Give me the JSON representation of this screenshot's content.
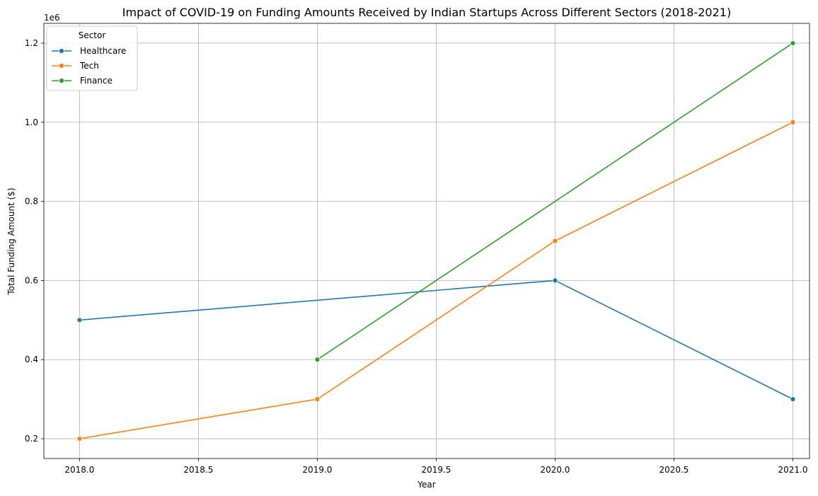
{
  "chart_data": {
    "type": "line",
    "title": "Impact of COVID-19 on Funding Amounts Received by Indian Startups Across Different Sectors (2018-2021)",
    "xlabel": "Year",
    "ylabel": "Total Funding Amount ($)",
    "y_offset_label": "1e6",
    "xlim": [
      2017.85,
      2021.07
    ],
    "ylim": [
      150000,
      1250000
    ],
    "x_ticks": [
      2018.0,
      2018.5,
      2019.0,
      2019.5,
      2020.0,
      2020.5,
      2021.0
    ],
    "x_tick_labels": [
      "2018.0",
      "2018.5",
      "2019.0",
      "2019.5",
      "2020.0",
      "2020.5",
      "2021.0"
    ],
    "y_ticks": [
      200000,
      400000,
      600000,
      800000,
      1000000,
      1200000
    ],
    "y_tick_labels": [
      "0.2",
      "0.4",
      "0.6",
      "0.8",
      "1.0",
      "1.2"
    ],
    "grid": true,
    "legend": {
      "title": "Sector",
      "placement": "top-left"
    },
    "series": [
      {
        "name": "Healthcare",
        "color": "#1f77b4",
        "x": [
          2018,
          2020,
          2021
        ],
        "y": [
          500000,
          600000,
          300000
        ]
      },
      {
        "name": "Tech",
        "color": "#ff7f0e",
        "x": [
          2018,
          2019,
          2020,
          2021
        ],
        "y": [
          200000,
          300000,
          700000,
          1000000
        ]
      },
      {
        "name": "Finance",
        "color": "#2ca02c",
        "x": [
          2019,
          2021
        ],
        "y": [
          400000,
          1200000
        ]
      }
    ]
  }
}
